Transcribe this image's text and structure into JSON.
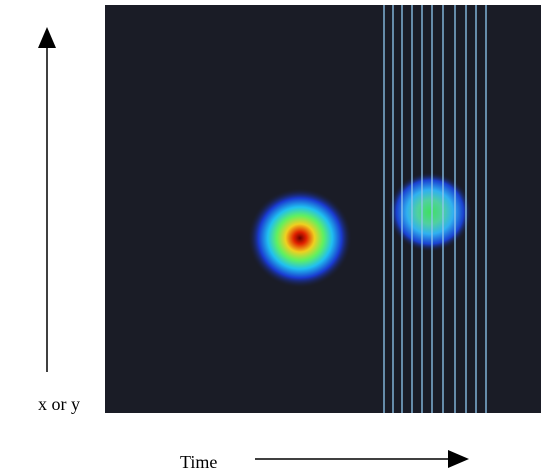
{
  "labels": {
    "vertical_axis": "x or y",
    "horizontal_axis": "Time"
  }
}
